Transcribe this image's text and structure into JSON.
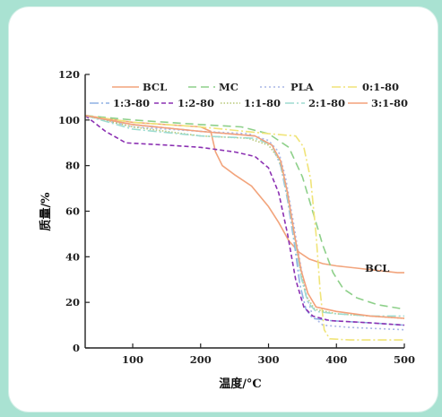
{
  "chart_data": {
    "type": "line",
    "xlabel": "温度/°C",
    "ylabel": "质量/%",
    "xlim": [
      30,
      500
    ],
    "ylim": [
      0,
      120
    ],
    "xticks": [
      100,
      200,
      300,
      400,
      500
    ],
    "yticks": [
      0,
      20,
      40,
      60,
      80,
      100,
      120
    ],
    "grid": false,
    "legend_position": "top-inside",
    "annotation": {
      "text": "BCL",
      "x": 478,
      "y": 35
    },
    "series": [
      {
        "name": "BCL",
        "color": "#f2a47c",
        "dash": "",
        "points": [
          [
            30,
            102
          ],
          [
            100,
            99
          ],
          [
            200,
            97
          ],
          [
            215,
            95
          ],
          [
            222,
            86
          ],
          [
            232,
            80
          ],
          [
            250,
            76
          ],
          [
            275,
            71
          ],
          [
            300,
            62
          ],
          [
            315,
            55
          ],
          [
            330,
            47
          ],
          [
            345,
            42
          ],
          [
            360,
            39
          ],
          [
            380,
            37
          ],
          [
            400,
            36
          ],
          [
            430,
            35
          ],
          [
            460,
            34
          ],
          [
            490,
            33
          ],
          [
            500,
            33
          ]
        ]
      },
      {
        "name": "MC",
        "color": "#8ed08a",
        "dash": "9,5",
        "points": [
          [
            30,
            102
          ],
          [
            100,
            100
          ],
          [
            200,
            98
          ],
          [
            260,
            97
          ],
          [
            300,
            94
          ],
          [
            330,
            88
          ],
          [
            350,
            75
          ],
          [
            365,
            60
          ],
          [
            380,
            45
          ],
          [
            395,
            33
          ],
          [
            410,
            26
          ],
          [
            430,
            22
          ],
          [
            460,
            19
          ],
          [
            500,
            17
          ]
        ]
      },
      {
        "name": "PLA",
        "color": "#a9b6e6",
        "dash": "2,3",
        "points": [
          [
            30,
            102
          ],
          [
            100,
            97
          ],
          [
            200,
            95
          ],
          [
            270,
            94
          ],
          [
            300,
            91
          ],
          [
            315,
            86
          ],
          [
            325,
            75
          ],
          [
            335,
            58
          ],
          [
            345,
            40
          ],
          [
            355,
            24
          ],
          [
            365,
            14
          ],
          [
            380,
            10
          ],
          [
            420,
            9
          ],
          [
            500,
            8
          ]
        ]
      },
      {
        "name": "0:1-80",
        "color": "#f0e479",
        "dash": "10,3,2,3",
        "points": [
          [
            30,
            102
          ],
          [
            100,
            99
          ],
          [
            200,
            97
          ],
          [
            300,
            94
          ],
          [
            340,
            93
          ],
          [
            352,
            88
          ],
          [
            362,
            74
          ],
          [
            370,
            50
          ],
          [
            376,
            25
          ],
          [
            382,
            8
          ],
          [
            390,
            4
          ],
          [
            420,
            3.5
          ],
          [
            500,
            3.5
          ]
        ]
      },
      {
        "name": "1:3-80",
        "color": "#8fb0e3",
        "dash": "10,3,2,3",
        "points": [
          [
            30,
            102
          ],
          [
            100,
            98
          ],
          [
            200,
            95
          ],
          [
            280,
            93
          ],
          [
            305,
            89
          ],
          [
            318,
            80
          ],
          [
            328,
            65
          ],
          [
            338,
            46
          ],
          [
            346,
            28
          ],
          [
            355,
            17
          ],
          [
            365,
            13
          ],
          [
            390,
            12
          ],
          [
            450,
            11
          ],
          [
            500,
            10
          ]
        ]
      },
      {
        "name": "1:2-80",
        "color": "#8b30b2",
        "dash": "5,3",
        "points": [
          [
            30,
            102
          ],
          [
            60,
            95
          ],
          [
            90,
            90
          ],
          [
            150,
            89
          ],
          [
            200,
            88
          ],
          [
            250,
            86
          ],
          [
            280,
            84
          ],
          [
            300,
            79
          ],
          [
            315,
            68
          ],
          [
            328,
            50
          ],
          [
            340,
            30
          ],
          [
            352,
            18
          ],
          [
            365,
            14
          ],
          [
            390,
            12
          ],
          [
            450,
            11
          ],
          [
            500,
            10
          ]
        ]
      },
      {
        "name": "1:1-80",
        "color": "#b7c777",
        "dash": "1.5,2",
        "points": [
          [
            30,
            102
          ],
          [
            100,
            97
          ],
          [
            200,
            93
          ],
          [
            270,
            92
          ],
          [
            300,
            89
          ],
          [
            315,
            83
          ],
          [
            325,
            72
          ],
          [
            335,
            55
          ],
          [
            345,
            37
          ],
          [
            355,
            23
          ],
          [
            368,
            17
          ],
          [
            400,
            15
          ],
          [
            450,
            14
          ],
          [
            500,
            13
          ]
        ]
      },
      {
        "name": "2:1-80",
        "color": "#9ddbd0",
        "dash": "10,3,2,3",
        "points": [
          [
            30,
            102
          ],
          [
            100,
            96
          ],
          [
            200,
            93
          ],
          [
            280,
            92
          ],
          [
            305,
            89
          ],
          [
            318,
            81
          ],
          [
            328,
            66
          ],
          [
            338,
            48
          ],
          [
            348,
            31
          ],
          [
            358,
            20
          ],
          [
            370,
            16
          ],
          [
            400,
            15
          ],
          [
            450,
            14
          ],
          [
            500,
            14
          ]
        ]
      },
      {
        "name": "3:1-80",
        "color": "#f4a07a",
        "dash": "",
        "points": [
          [
            30,
            102
          ],
          [
            100,
            98
          ],
          [
            200,
            95
          ],
          [
            280,
            93
          ],
          [
            305,
            89
          ],
          [
            318,
            82
          ],
          [
            328,
            68
          ],
          [
            338,
            50
          ],
          [
            348,
            34
          ],
          [
            358,
            24
          ],
          [
            370,
            18
          ],
          [
            400,
            16
          ],
          [
            450,
            14
          ],
          [
            500,
            13
          ]
        ]
      }
    ]
  }
}
